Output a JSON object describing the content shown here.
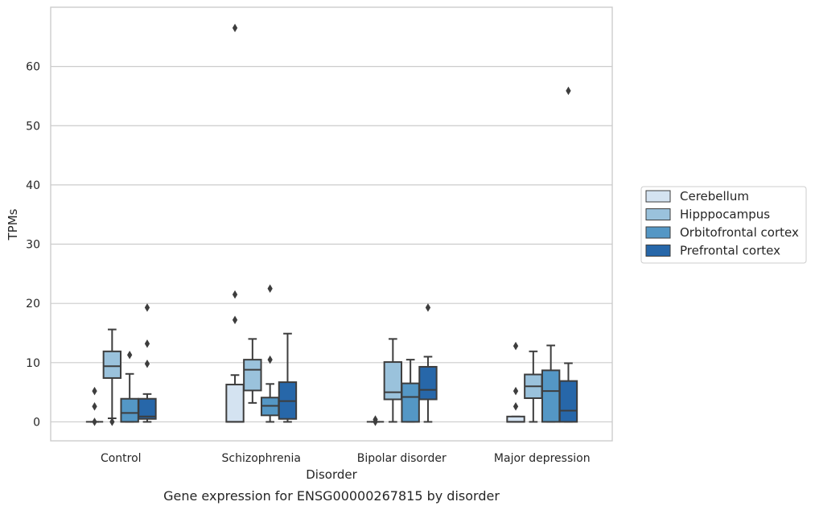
{
  "chart_data": {
    "type": "box",
    "title": "",
    "caption": "Gene expression for ENSG00000267815 by disorder",
    "xlabel": "Disorder",
    "ylabel": "TPMs",
    "ylim": [
      -3.2,
      70
    ],
    "yticks": [
      0,
      10,
      20,
      30,
      40,
      50,
      60
    ],
    "grid": "horizontal",
    "legend_position": "right",
    "categories": [
      "Control",
      "Schizophrenia",
      "Bipolar disorder",
      "Major depression"
    ],
    "series": [
      {
        "name": "Cerebellum",
        "color": "#d4e3f1",
        "boxes": [
          {
            "q1": 0,
            "median": 0,
            "q3": 0,
            "whisker_low": 0,
            "whisker_high": 0,
            "outliers": [
              0,
              2.6,
              5.2
            ]
          },
          {
            "q1": 0,
            "median": 0,
            "q3": 6.3,
            "whisker_low": 0,
            "whisker_high": 7.9,
            "outliers": [
              17.2,
              21.5,
              66.5
            ]
          },
          {
            "q1": 0,
            "median": 0,
            "q3": 0,
            "whisker_low": 0,
            "whisker_high": 0,
            "outliers": [
              0,
              0.4
            ]
          },
          {
            "q1": 0,
            "median": 0,
            "q3": 0.9,
            "whisker_low": 0,
            "whisker_high": 0.9,
            "outliers": [
              2.6,
              5.2,
              12.8
            ]
          }
        ]
      },
      {
        "name": "Hipppocampus",
        "color": "#9ac2dc",
        "boxes": [
          {
            "q1": 7.4,
            "median": 9.4,
            "q3": 11.9,
            "whisker_low": 0.6,
            "whisker_high": 15.6,
            "outliers": [
              0
            ]
          },
          {
            "q1": 5.3,
            "median": 8.8,
            "q3": 10.5,
            "whisker_low": 3.2,
            "whisker_high": 14.0,
            "outliers": []
          },
          {
            "q1": 3.8,
            "median": 5.0,
            "q3": 10.1,
            "whisker_low": 0,
            "whisker_high": 14.0,
            "outliers": []
          },
          {
            "q1": 4.0,
            "median": 6.0,
            "q3": 8.0,
            "whisker_low": 0,
            "whisker_high": 11.9,
            "outliers": []
          }
        ]
      },
      {
        "name": "Orbitofrontal cortex",
        "color": "#5497c5",
        "boxes": [
          {
            "q1": 0,
            "median": 1.5,
            "q3": 3.9,
            "whisker_low": 0,
            "whisker_high": 8.1,
            "outliers": [
              11.3
            ]
          },
          {
            "q1": 1.1,
            "median": 2.7,
            "q3": 4.1,
            "whisker_low": 0,
            "whisker_high": 6.4,
            "outliers": [
              10.5,
              22.5
            ]
          },
          {
            "q1": 0,
            "median": 4.2,
            "q3": 6.5,
            "whisker_low": 0,
            "whisker_high": 10.5,
            "outliers": []
          },
          {
            "q1": 0,
            "median": 5.2,
            "q3": 8.7,
            "whisker_low": 0,
            "whisker_high": 12.9,
            "outliers": []
          }
        ]
      },
      {
        "name": "Prefrontal cortex",
        "color": "#2767a9",
        "boxes": [
          {
            "q1": 0.5,
            "median": 0.9,
            "q3": 3.9,
            "whisker_low": 0,
            "whisker_high": 4.7,
            "outliers": [
              9.8,
              13.2,
              19.3
            ]
          },
          {
            "q1": 0.5,
            "median": 3.5,
            "q3": 6.7,
            "whisker_low": 0,
            "whisker_high": 14.9,
            "outliers": []
          },
          {
            "q1": 3.8,
            "median": 5.4,
            "q3": 9.3,
            "whisker_low": 0,
            "whisker_high": 11.0,
            "outliers": [
              19.3
            ]
          },
          {
            "q1": 0,
            "median": 1.9,
            "q3": 6.9,
            "whisker_low": 0,
            "whisker_high": 9.9,
            "outliers": [
              55.9
            ]
          }
        ]
      }
    ]
  }
}
